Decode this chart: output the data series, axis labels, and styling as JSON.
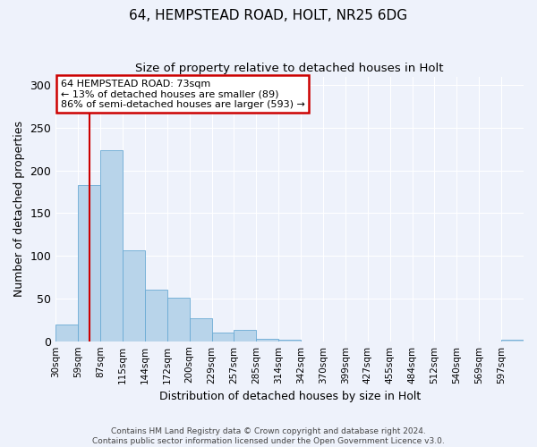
{
  "title": "64, HEMPSTEAD ROAD, HOLT, NR25 6DG",
  "subtitle": "Size of property relative to detached houses in Holt",
  "xlabel": "Distribution of detached houses by size in Holt",
  "ylabel": "Number of detached properties",
  "footer_line1": "Contains HM Land Registry data © Crown copyright and database right 2024.",
  "footer_line2": "Contains public sector information licensed under the Open Government Licence v3.0.",
  "annotation_line1": "64 HEMPSTEAD ROAD: 73sqm",
  "annotation_line2": "← 13% of detached houses are smaller (89)",
  "annotation_line3": "86% of semi-detached houses are larger (593) →",
  "property_size_idx": 1.5,
  "bar_color": "#b8d4ea",
  "bar_edge_color": "#6aaad4",
  "vline_color": "#cc0000",
  "annotation_box_edge": "#cc0000",
  "background_color": "#eef2fb",
  "plot_bg_color": "#eef2fb",
  "categories": [
    "30sqm",
    "59sqm",
    "87sqm",
    "115sqm",
    "144sqm",
    "172sqm",
    "200sqm",
    "229sqm",
    "257sqm",
    "285sqm",
    "314sqm",
    "342sqm",
    "370sqm",
    "399sqm",
    "427sqm",
    "455sqm",
    "484sqm",
    "512sqm",
    "540sqm",
    "569sqm",
    "597sqm"
  ],
  "values": [
    20,
    183,
    224,
    106,
    60,
    51,
    27,
    10,
    13,
    3,
    2,
    0,
    0,
    0,
    0,
    0,
    0,
    0,
    0,
    0,
    2
  ],
  "ylim": [
    0,
    310
  ],
  "yticks": [
    0,
    50,
    100,
    150,
    200,
    250,
    300
  ]
}
